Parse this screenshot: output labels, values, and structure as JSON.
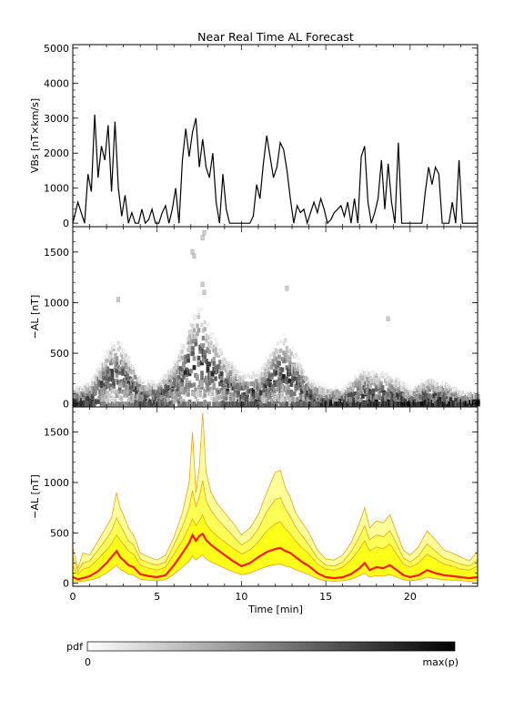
{
  "figure": {
    "title": "Near Real Time AL Forecast",
    "xlabel": "Time [min]",
    "colorbar": {
      "label": "pdf",
      "min_label": "0",
      "max_label": "max(p)"
    }
  },
  "chart_data": [
    {
      "type": "line",
      "panel": "top",
      "ylabel": "VBs [nT×km/s]",
      "xlim": [
        0,
        24
      ],
      "ylim": [
        -100,
        5100
      ],
      "xticks": [
        0,
        5,
        10,
        15,
        20
      ],
      "yticks": [
        0,
        1000,
        2000,
        3000,
        4000,
        5000
      ],
      "ytick_labels": [
        "0",
        "1000",
        "2000",
        "3000",
        "4000",
        "5000"
      ],
      "series": [
        {
          "color": "#000000",
          "x": [
            0,
            0.3,
            0.5,
            0.7,
            0.9,
            1.1,
            1.3,
            1.5,
            1.7,
            1.9,
            2.1,
            2.3,
            2.5,
            2.7,
            2.9,
            3.1,
            3.3,
            3.5,
            3.7,
            3.9,
            4.1,
            4.3,
            4.5,
            4.7,
            4.9,
            5.1,
            5.3,
            5.5,
            5.7,
            5.9,
            6.1,
            6.3,
            6.5,
            6.7,
            6.9,
            7.1,
            7.3,
            7.5,
            7.7,
            7.9,
            8.1,
            8.3,
            8.5,
            8.7,
            8.9,
            9.1,
            9.3,
            9.5,
            9.7,
            9.9,
            10.1,
            10.3,
            10.5,
            10.7,
            10.9,
            11.1,
            11.3,
            11.5,
            11.7,
            11.9,
            12.1,
            12.3,
            12.5,
            12.7,
            12.9,
            13.1,
            13.3,
            13.5,
            13.7,
            13.9,
            14.1,
            14.3,
            14.5,
            14.7,
            14.9,
            15.1,
            15.3,
            15.5,
            15.7,
            15.9,
            16.1,
            16.3,
            16.5,
            16.7,
            16.9,
            17.1,
            17.3,
            17.5,
            17.7,
            17.9,
            18.1,
            18.3,
            18.5,
            18.7,
            18.9,
            19.1,
            19.3,
            19.5,
            19.7,
            19.9,
            20.1,
            20.3,
            20.5,
            20.7,
            20.9,
            21.1,
            21.3,
            21.5,
            21.7,
            21.9,
            22.1,
            22.3,
            22.5,
            22.7,
            22.9,
            23.1,
            23.3,
            23.5,
            23.7,
            24.0
          ],
          "y": [
            0,
            600,
            300,
            0,
            1400,
            900,
            3100,
            1300,
            2200,
            1800,
            2800,
            900,
            2900,
            1000,
            200,
            800,
            0,
            300,
            0,
            0,
            400,
            0,
            100,
            400,
            0,
            0,
            300,
            500,
            0,
            400,
            1000,
            0,
            1800,
            2700,
            1900,
            2600,
            3000,
            1600,
            2400,
            1600,
            1300,
            2000,
            600,
            0,
            1400,
            400,
            0,
            0,
            0,
            0,
            0,
            0,
            0,
            200,
            1100,
            700,
            1700,
            2500,
            1900,
            1300,
            1600,
            2300,
            2100,
            1500,
            700,
            0,
            500,
            300,
            400,
            0,
            300,
            600,
            300,
            700,
            400,
            0,
            100,
            300,
            400,
            500,
            200,
            600,
            0,
            700,
            0,
            1900,
            2200,
            600,
            0,
            300,
            700,
            1800,
            400,
            1700,
            600,
            0,
            2300,
            0,
            0,
            0,
            0,
            0,
            0,
            0,
            900,
            1600,
            1100,
            1600,
            1400,
            0,
            0,
            0,
            600,
            0,
            1800,
            0,
            0,
            0,
            0,
            0
          ]
        }
      ]
    },
    {
      "type": "heatmap",
      "panel": "middle",
      "ylabel": "−AL [nT]",
      "xlim": [
        0,
        24
      ],
      "ylim": [
        -30,
        1750
      ],
      "xticks": [
        0,
        5,
        10,
        15,
        20
      ],
      "yticks": [
        0,
        500,
        1000,
        1500
      ],
      "ytick_labels": [
        "0",
        "500",
        "1000",
        "1500"
      ],
      "colorscale": [
        "#ffffff",
        "#000000"
      ],
      "ensemble_center": {
        "x": [
          0,
          1,
          2,
          2.5,
          3,
          4,
          5,
          6,
          7,
          7.5,
          8,
          9,
          10,
          11,
          12,
          12.5,
          13,
          14,
          15,
          16,
          17,
          18,
          19,
          20,
          21,
          22,
          23,
          24
        ],
        "y": [
          30,
          60,
          250,
          300,
          260,
          80,
          60,
          180,
          380,
          420,
          350,
          180,
          100,
          120,
          250,
          280,
          220,
          80,
          40,
          40,
          100,
          90,
          70,
          30,
          60,
          50,
          30,
          30
        ]
      },
      "ensemble_spread": {
        "x": [
          0,
          1,
          2,
          2.5,
          3,
          4,
          5,
          6,
          7,
          7.5,
          8,
          9,
          10,
          11,
          12,
          12.5,
          13,
          14,
          15,
          16,
          17,
          18,
          19,
          20,
          21,
          22,
          23,
          24
        ],
        "y": [
          150,
          200,
          350,
          450,
          350,
          200,
          200,
          300,
          600,
          700,
          500,
          350,
          250,
          250,
          450,
          500,
          400,
          200,
          150,
          150,
          300,
          300,
          250,
          150,
          250,
          200,
          120,
          120
        ]
      }
    },
    {
      "type": "area",
      "panel": "bottom",
      "ylabel": "−AL [nT]",
      "xlim": [
        0,
        24
      ],
      "ylim": [
        -30,
        1750
      ],
      "xticks": [
        0,
        5,
        10,
        15,
        20
      ],
      "xtick_labels": [
        "0",
        "5",
        "10",
        "15",
        "20"
      ],
      "yticks": [
        0,
        500,
        1000,
        1500
      ],
      "ytick_labels": [
        "0",
        "500",
        "1000",
        "1500"
      ],
      "colors": {
        "median": "#ff1a1a",
        "inner_band": "#ffff1a",
        "outer_band": "#ffff99",
        "envelope": "#f0a020"
      },
      "x": [
        0,
        0.3,
        0.6,
        1,
        1.5,
        2,
        2.3,
        2.6,
        2.8,
        3,
        3.3,
        3.6,
        4,
        4.5,
        5,
        5.5,
        6,
        6.5,
        6.9,
        7.1,
        7.3,
        7.5,
        7.7,
        7.9,
        8.2,
        8.6,
        9,
        9.5,
        10,
        10.5,
        11,
        11.5,
        12,
        12.3,
        12.6,
        12.9,
        13.2,
        13.6,
        14,
        14.5,
        15,
        15.5,
        16,
        16.5,
        17,
        17.3,
        17.6,
        18,
        18.4,
        18.8,
        19.2,
        19.6,
        20,
        20.5,
        21,
        21.5,
        22,
        22.5,
        23,
        23.5,
        24
      ],
      "series": [
        {
          "name": "",
          "role": "upper_envelope",
          "values": [
            350,
            150,
            300,
            280,
            420,
            560,
            650,
            900,
            750,
            680,
            550,
            480,
            300,
            260,
            230,
            280,
            460,
            700,
            1000,
            1500,
            900,
            1150,
            1690,
            1100,
            900,
            780,
            700,
            600,
            480,
            550,
            680,
            900,
            1100,
            1120,
            950,
            850,
            700,
            600,
            500,
            330,
            240,
            230,
            280,
            400,
            600,
            750,
            550,
            620,
            600,
            680,
            500,
            330,
            280,
            360,
            520,
            430,
            330,
            300,
            260,
            220,
            310
          ]
        },
        {
          "name": "",
          "role": "outer_band",
          "values": [
            260,
            120,
            200,
            220,
            330,
            440,
            520,
            650,
            580,
            520,
            420,
            380,
            240,
            200,
            180,
            210,
            380,
            560,
            750,
            920,
            760,
            860,
            1020,
            820,
            720,
            630,
            560,
            470,
            380,
            430,
            540,
            710,
            830,
            850,
            740,
            660,
            560,
            470,
            380,
            250,
            180,
            170,
            210,
            310,
            460,
            570,
            430,
            480,
            460,
            520,
            390,
            250,
            210,
            270,
            390,
            320,
            250,
            220,
            190,
            170,
            230
          ]
        },
        {
          "name": "",
          "role": "inner_band",
          "values": [
            170,
            90,
            140,
            160,
            240,
            330,
            390,
            480,
            430,
            390,
            320,
            290,
            180,
            150,
            130,
            160,
            290,
            420,
            560,
            640,
            570,
            620,
            680,
            590,
            520,
            460,
            410,
            350,
            290,
            330,
            410,
            520,
            590,
            610,
            540,
            490,
            420,
            350,
            290,
            190,
            140,
            130,
            160,
            230,
            340,
            420,
            320,
            360,
            340,
            390,
            290,
            190,
            160,
            200,
            290,
            240,
            190,
            170,
            140,
            130,
            170
          ]
        },
        {
          "name": "",
          "role": "median",
          "values": [
            60,
            40,
            50,
            70,
            120,
            200,
            260,
            320,
            260,
            230,
            180,
            160,
            90,
            70,
            60,
            80,
            180,
            300,
            400,
            480,
            420,
            470,
            490,
            430,
            380,
            330,
            280,
            220,
            170,
            200,
            260,
            310,
            340,
            350,
            320,
            300,
            260,
            210,
            170,
            100,
            60,
            50,
            60,
            90,
            150,
            200,
            130,
            160,
            150,
            180,
            130,
            80,
            60,
            80,
            130,
            100,
            80,
            70,
            60,
            50,
            60
          ]
        },
        {
          "name": "",
          "role": "lower_band",
          "values": [
            20,
            15,
            20,
            30,
            55,
            100,
            140,
            180,
            140,
            120,
            90,
            80,
            40,
            30,
            25,
            35,
            90,
            160,
            220,
            270,
            230,
            260,
            280,
            240,
            210,
            180,
            150,
            115,
            85,
            100,
            135,
            165,
            185,
            190,
            170,
            160,
            135,
            110,
            85,
            45,
            25,
            20,
            25,
            40,
            75,
            100,
            60,
            75,
            70,
            85,
            60,
            35,
            25,
            35,
            60,
            45,
            35,
            30,
            25,
            20,
            25
          ]
        }
      ]
    }
  ]
}
